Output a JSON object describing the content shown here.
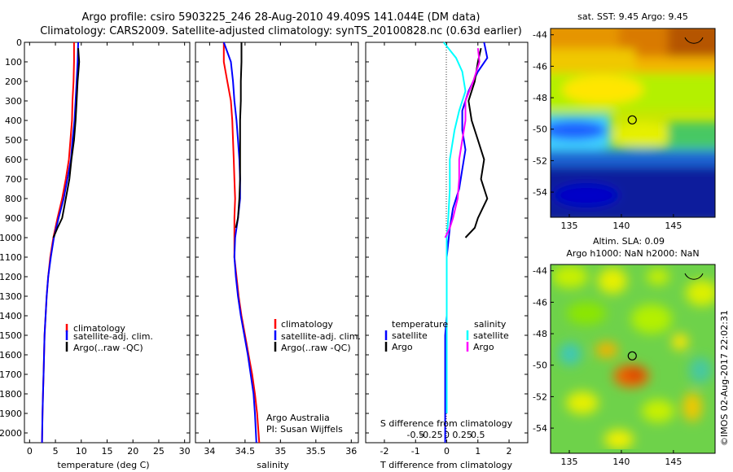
{
  "header": {
    "title_line1": "Argo profile: csiro 5903225_246 28-Aug-2010 49.409S 141.044E (DM data)",
    "title_line2": "Climatology: CARS2009. Satellite-adjusted climatology: synTS_20100828.nc (0.63d earlier)"
  },
  "colors": {
    "climatology": "#ff0000",
    "satellite": "#0000ff",
    "argo": "#000000",
    "s_satellite": "#00ffff",
    "s_argo": "#ff00ff"
  },
  "chart_data": [
    {
      "type": "line",
      "name": "temperature-panel",
      "xlabel": "temperature (deg C)",
      "ylabel": "",
      "xlim": [
        -1,
        31
      ],
      "ylim": [
        2050,
        0
      ],
      "xticks": [
        0,
        5,
        10,
        15,
        20,
        25,
        30
      ],
      "yticks": [
        0,
        100,
        200,
        300,
        400,
        500,
        600,
        700,
        800,
        900,
        1000,
        1100,
        1200,
        1300,
        1400,
        1500,
        1600,
        1700,
        1800,
        1900,
        2000
      ],
      "legend": [
        "climatology",
        "satellite-adj. clim.",
        "Argo(..raw -QC)"
      ],
      "series": [
        {
          "name": "climatology",
          "x": [
            8.6,
            8.6,
            8.5,
            8.3,
            8.2,
            7.9,
            7.6,
            7.0,
            6.3,
            5.4,
            4.6,
            4.0,
            3.6,
            3.3,
            3.1,
            2.9,
            2.8,
            2.7,
            2.6,
            2.5,
            2.4
          ],
          "y": [
            0,
            100,
            200,
            300,
            400,
            500,
            600,
            700,
            800,
            900,
            1000,
            1100,
            1200,
            1300,
            1400,
            1500,
            1600,
            1700,
            1800,
            1900,
            2050
          ]
        },
        {
          "name": "satellite-adj. clim.",
          "x": [
            9.4,
            9.3,
            9.1,
            8.9,
            8.7,
            8.3,
            8.0,
            7.3,
            6.6,
            5.6,
            4.7,
            4.1,
            3.6,
            3.3,
            3.1,
            2.9,
            2.8,
            2.7,
            2.6,
            2.5,
            2.4
          ],
          "y": [
            0,
            100,
            200,
            300,
            400,
            500,
            600,
            700,
            800,
            900,
            1000,
            1100,
            1200,
            1300,
            1400,
            1500,
            1600,
            1700,
            1800,
            1900,
            2050
          ]
        },
        {
          "name": "Argo(..raw -QC)",
          "x": [
            9.4,
            9.6,
            9.3,
            9.1,
            8.9,
            8.6,
            8.1,
            7.7,
            7.0,
            6.3,
            5.4,
            4.6
          ],
          "y": [
            30,
            100,
            200,
            300,
            400,
            500,
            600,
            700,
            800,
            900,
            950,
            1000
          ]
        }
      ]
    },
    {
      "type": "line",
      "name": "salinity-panel",
      "xlabel": "salinity",
      "ylabel": "",
      "xlim": [
        33.8,
        36.1
      ],
      "ylim": [
        2050,
        0
      ],
      "xticks": [
        34,
        34.5,
        35,
        35.5,
        36
      ],
      "legend": [
        "climatology",
        "satellite-adj. clim.",
        "Argo(..raw -QC)"
      ],
      "series": [
        {
          "name": "climatology",
          "x": [
            34.2,
            34.2,
            34.25,
            34.3,
            34.32,
            34.33,
            34.34,
            34.35,
            34.36,
            34.35,
            34.35,
            34.35,
            34.38,
            34.41,
            34.45,
            34.5,
            34.55,
            34.6,
            34.64,
            34.67,
            34.7
          ],
          "y": [
            0,
            100,
            200,
            300,
            400,
            500,
            600,
            700,
            800,
            900,
            1000,
            1100,
            1200,
            1300,
            1400,
            1500,
            1600,
            1700,
            1800,
            1900,
            2050
          ]
        },
        {
          "name": "satellite-adj. clim.",
          "x": [
            34.2,
            34.3,
            34.33,
            34.35,
            34.38,
            34.4,
            34.42,
            34.43,
            34.43,
            34.4,
            34.36,
            34.35,
            34.37,
            34.4,
            34.44,
            34.49,
            34.54,
            34.58,
            34.62,
            34.64,
            34.66
          ],
          "y": [
            0,
            100,
            200,
            300,
            400,
            500,
            600,
            700,
            800,
            900,
            1000,
            1100,
            1200,
            1300,
            1400,
            1500,
            1600,
            1700,
            1800,
            1900,
            2050
          ]
        },
        {
          "name": "Argo(..raw -QC)",
          "x": [
            34.45,
            34.45,
            34.44,
            34.44,
            34.43,
            34.43,
            34.43,
            34.43,
            34.42,
            34.4,
            34.37
          ],
          "y": [
            0,
            100,
            200,
            300,
            400,
            500,
            600,
            700,
            800,
            900,
            950
          ]
        }
      ],
      "annotation": [
        "Argo Australia",
        "PI: Susan Wijffels"
      ]
    },
    {
      "type": "line",
      "name": "difference-panel",
      "xlabel": "T difference from climatology",
      "xlabel_top": "S difference from climatology",
      "xlim": [
        -2.6,
        2.6
      ],
      "ylim": [
        2050,
        0
      ],
      "xticks_T": [
        -2,
        -1,
        0,
        1,
        2
      ],
      "xticks_S": [
        "-0.5",
        "-0.25",
        "0",
        "0.25",
        "0.5"
      ],
      "legend_temperature": [
        "temperature",
        "satellite",
        "Argo"
      ],
      "legend_salinity": [
        "salinity",
        "satellite",
        "Argo"
      ],
      "series": [
        {
          "name": "T satellite",
          "x": [
            1.2,
            1.3,
            1.0,
            0.7,
            0.5,
            0.5,
            0.6,
            0.5,
            0.4,
            0.2,
            0.1,
            0.0,
            0.0,
            0.0,
            -0.05,
            -0.05,
            -0.05,
            -0.05,
            -0.05,
            -0.05,
            -0.05
          ],
          "y": [
            0,
            80,
            150,
            250,
            350,
            450,
            550,
            650,
            750,
            850,
            950,
            1100,
            1200,
            1400,
            1500,
            1600,
            1700,
            1800,
            1900,
            2000,
            2050
          ]
        },
        {
          "name": "T Argo",
          "x": [
            1.1,
            1.0,
            0.9,
            0.7,
            0.8,
            1.0,
            1.2,
            1.1,
            1.3,
            1.0,
            0.9,
            0.6
          ],
          "y": [
            30,
            100,
            200,
            300,
            400,
            500,
            600,
            700,
            800,
            900,
            950,
            1000
          ]
        },
        {
          "name": "S satellite",
          "x": [
            -0.1,
            0.3,
            0.5,
            0.6,
            0.4,
            0.25,
            0.1,
            0.1,
            0.05,
            0.0,
            0.0,
            0.0,
            0.0,
            0.0,
            0.0
          ],
          "y": [
            0,
            80,
            150,
            250,
            350,
            450,
            600,
            750,
            900,
            1000,
            1100,
            1300,
            1500,
            1700,
            1900
          ]
        },
        {
          "name": "S Argo",
          "x": [
            1.0,
            1.05,
            0.85,
            0.6,
            0.6,
            0.5,
            0.4,
            0.4,
            0.35,
            0.2,
            0.1,
            -0.05
          ],
          "y": [
            30,
            100,
            200,
            300,
            400,
            500,
            600,
            700,
            800,
            900,
            950,
            1000
          ]
        }
      ]
    },
    {
      "type": "heatmap",
      "name": "sst-map",
      "title": "sat. SST: 9.45 Argo: 9.45",
      "xticks": [
        135,
        140,
        145
      ],
      "yticks": [
        -44,
        -46,
        -48,
        -50,
        -52,
        -54
      ],
      "xlim": [
        133.2,
        149
      ],
      "ylim": [
        -55.6,
        -43.6
      ],
      "marker": {
        "lon": 141.044,
        "lat": -49.409
      }
    },
    {
      "type": "heatmap",
      "name": "sla-map",
      "title": "Altim. SLA: 0.09",
      "subtitle": "Argo h1000: NaN h2000: NaN",
      "xticks": [
        135,
        140,
        145
      ],
      "yticks": [
        -44,
        -46,
        -48,
        -50,
        -52,
        -54
      ],
      "xlim": [
        133.2,
        149
      ],
      "ylim": [
        -55.6,
        -43.6
      ],
      "marker": {
        "lon": 141.044,
        "lat": -49.409
      }
    }
  ],
  "side_note": "©IMOS 02-Aug-2017 22:02:31"
}
